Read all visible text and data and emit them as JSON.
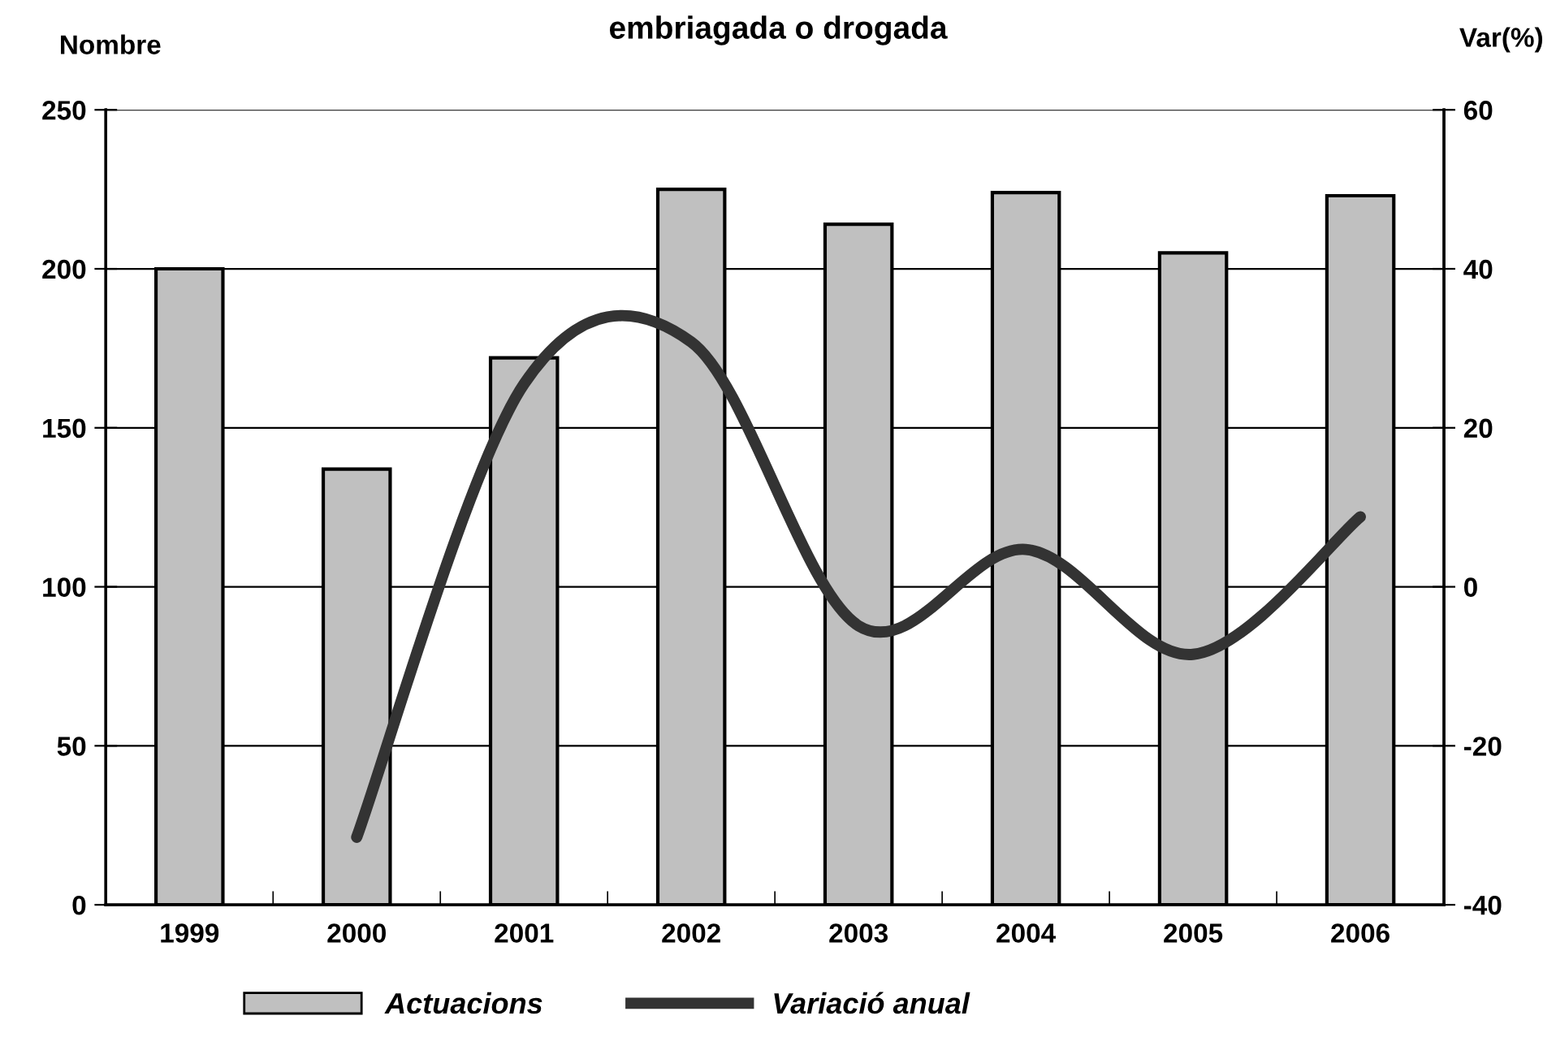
{
  "chart_data": {
    "type": "bar",
    "title": "embriagada o drogada",
    "ylabel": "Nombre",
    "y2label": "Var(%)",
    "categories": [
      "1999",
      "2000",
      "2001",
      "2002",
      "2003",
      "2004",
      "2005",
      "2006"
    ],
    "series": [
      {
        "name": "Actuacions",
        "color": "#c0c0c0",
        "values": [
          200,
          137,
          172,
          225,
          214,
          224,
          205,
          223
        ]
      },
      {
        "name": "Variació anual",
        "type": "line",
        "axis": "y2",
        "color": "#333333",
        "values": [
          null,
          -31.5,
          25.5,
          30.8,
          -4.9,
          4.7,
          -8.5,
          8.8
        ]
      }
    ],
    "ylim": [
      0,
      250
    ],
    "yticks": [
      0,
      50,
      100,
      150,
      200,
      250
    ],
    "y2lim": [
      -40,
      60
    ],
    "y2ticks": [
      -40,
      -20,
      0,
      20,
      40,
      60
    ],
    "grid": "y",
    "legend": "bottom",
    "marker": "none",
    "line_style": "solid"
  }
}
